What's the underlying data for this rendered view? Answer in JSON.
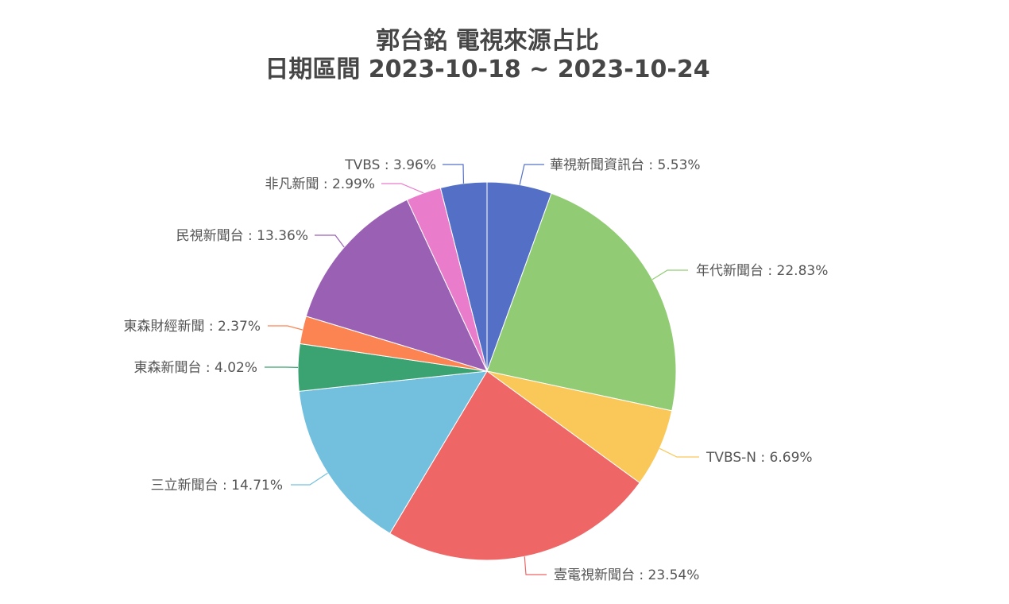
{
  "chart_data": {
    "type": "pie",
    "title": "郭台銘 電視來源占比",
    "subtitle": "日期區間 2023-10-18 ~ 2023-10-24",
    "slices": [
      {
        "name": "華視新聞資訊台",
        "value": 5.53,
        "label": "華視新聞資訊台 : 5.53%",
        "color": "#5470c6"
      },
      {
        "name": "年代新聞台",
        "value": 22.83,
        "label": "年代新聞台 : 22.83%",
        "color": "#91cc75"
      },
      {
        "name": "TVBS-N",
        "value": 6.69,
        "label": "TVBS-N : 6.69%",
        "color": "#fac858"
      },
      {
        "name": "壹電視新聞台",
        "value": 23.54,
        "label": "壹電視新聞台 : 23.54%",
        "color": "#ee6666"
      },
      {
        "name": "三立新聞台",
        "value": 14.71,
        "label": "三立新聞台 : 14.71%",
        "color": "#73c0de"
      },
      {
        "name": "東森新聞台",
        "value": 4.02,
        "label": "東森新聞台 : 4.02%",
        "color": "#3ba272"
      },
      {
        "name": "東森財經新聞",
        "value": 2.37,
        "label": "東森財經新聞 : 2.37%",
        "color": "#fc8452"
      },
      {
        "name": "民視新聞台",
        "value": 13.36,
        "label": "民視新聞台 : 13.36%",
        "color": "#9a60b4"
      },
      {
        "name": "非凡新聞",
        "value": 2.99,
        "label": "非凡新聞 : 2.99%",
        "color": "#ea7ccc"
      },
      {
        "name": "TVBS",
        "value": 3.96,
        "label": "TVBS : 3.96%",
        "color": "#5470c6"
      }
    ]
  }
}
